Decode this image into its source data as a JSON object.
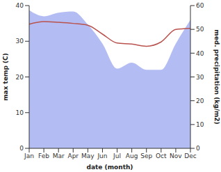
{
  "chart_data": {
    "type": "line",
    "xlabel": "date (month)",
    "ylabel": "max temp (C)",
    "y2label": "med. precipitation (kg/m2)",
    "categories": [
      "Jan",
      "Feb",
      "Mar",
      "Apr",
      "May",
      "Jun",
      "Jul",
      "Aug",
      "Sep",
      "Oct",
      "Nov",
      "Dec"
    ],
    "ylim": [
      0,
      40
    ],
    "yticks": [
      0,
      10,
      20,
      30,
      40
    ],
    "y2lim": [
      0,
      60
    ],
    "y2ticks": [
      0,
      10,
      20,
      30,
      40,
      50,
      60
    ],
    "grid": false,
    "series": [
      {
        "name": "med. precipitation (kg/m2)",
        "type": "area",
        "axis": "y2",
        "color": "#b3bdf3",
        "values": [
          58,
          55.5,
          57,
          57.5,
          52,
          44,
          33.5,
          36,
          33,
          33,
          44,
          54
        ]
      },
      {
        "name": "max temp (C)",
        "type": "line",
        "axis": "y",
        "color": "#b9524d",
        "values": [
          34.8,
          35.5,
          35.3,
          35,
          34.5,
          32,
          29.5,
          29.2,
          28.6,
          29.8,
          33.3,
          33.6
        ]
      }
    ]
  }
}
